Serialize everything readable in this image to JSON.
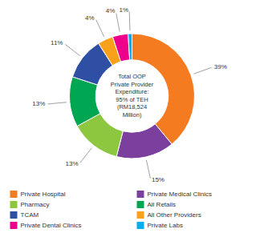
{
  "chart_data": {
    "type": "donut",
    "categories": [
      "Private Hospital",
      "Private Medical Clinics",
      "Pharmacy",
      "All Retails",
      "TCAM",
      "All Other Providers",
      "Private Dental Clinics",
      "Private Labs"
    ],
    "values": [
      39,
      15,
      13,
      13,
      11,
      4,
      4,
      1
    ],
    "value_labels": [
      "39%",
      "15%",
      "13%",
      "13%",
      "11%",
      "4%",
      "4%",
      "1%"
    ],
    "colors": [
      "#F47B20",
      "#7B3F9E",
      "#8DC63F",
      "#00A651",
      "#2E4FA3",
      "#F9A11B",
      "#EC008C",
      "#00AEEF"
    ],
    "data_labels": true,
    "legend": "bottom",
    "annotations": [
      "Total OOP\nPrivate Provider\nExpenditure:\n95% of TEH\n(RM18,524\nMillion)"
    ]
  }
}
